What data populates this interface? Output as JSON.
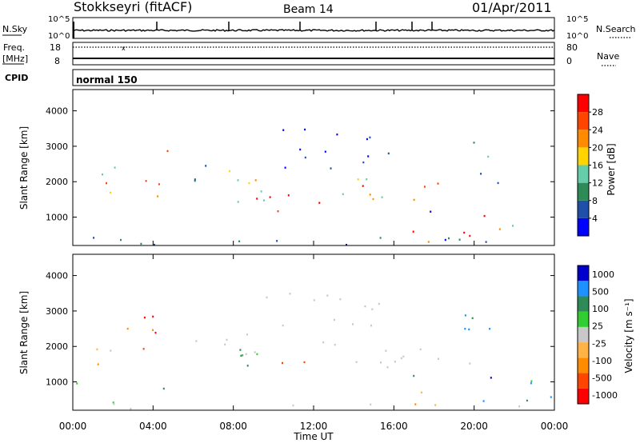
{
  "header": {
    "station": "Stokkseyri (fitACF)",
    "beam": "Beam 14",
    "date": "01/Apr/2011"
  },
  "strip_labels": {
    "nsky": "N.Sky",
    "nsearch": "N.Search",
    "freq_top": "Freq.",
    "freq_unit": "[MHz]",
    "nave": "Nave",
    "cpid": "CPID",
    "cpid_value": "normal 150"
  },
  "strip_ticks": {
    "nsky_left": [
      "10^5",
      "10^0"
    ],
    "nsky_right": [
      "10^5",
      "10^0"
    ],
    "freq_left": [
      "18",
      "8"
    ],
    "freq_right": [
      "80",
      "0"
    ]
  },
  "colors": {
    "power_scale": [
      "#0000ff",
      "#1f4fa8",
      "#2e8b57",
      "#66cdaa",
      "#ffd400",
      "#ff8c00",
      "#ff4500",
      "#ff0000"
    ],
    "velocity_scale": [
      "#ff0000",
      "#ff4500",
      "#ff8c00",
      "#ffb347",
      "#c8c8c8",
      "#32cd32",
      "#2e8b57",
      "#1e90ff",
      "#0000cd"
    ]
  },
  "chart_data": [
    {
      "type": "heatmap",
      "name": "power",
      "xlabel": "",
      "ylabel": "Slant Range [km]",
      "x_ticks": [
        "00:00",
        "04:00",
        "08:00",
        "12:00",
        "16:00",
        "20:00",
        "00:00"
      ],
      "y_ticks": [
        1000,
        2000,
        3000,
        4000
      ],
      "ylim": [
        200,
        4600
      ],
      "colorbar_label": "Power [dB]",
      "colorbar_ticks": [
        4,
        8,
        12,
        16,
        20,
        24,
        28
      ],
      "colorbar_range": [
        0,
        32
      ]
    },
    {
      "type": "heatmap",
      "name": "velocity",
      "xlabel": "Time UT",
      "ylabel": "Slant Range [km]",
      "x_ticks": [
        "00:00",
        "04:00",
        "08:00",
        "12:00",
        "16:00",
        "20:00",
        "00:00"
      ],
      "y_ticks": [
        1000,
        2000,
        3000,
        4000
      ],
      "ylim": [
        200,
        4600
      ],
      "colorbar_label": "Velocity [m s⁻¹]",
      "colorbar_ticks": [
        1000,
        500,
        100,
        25,
        -25,
        -100,
        -500,
        -1000
      ]
    }
  ]
}
